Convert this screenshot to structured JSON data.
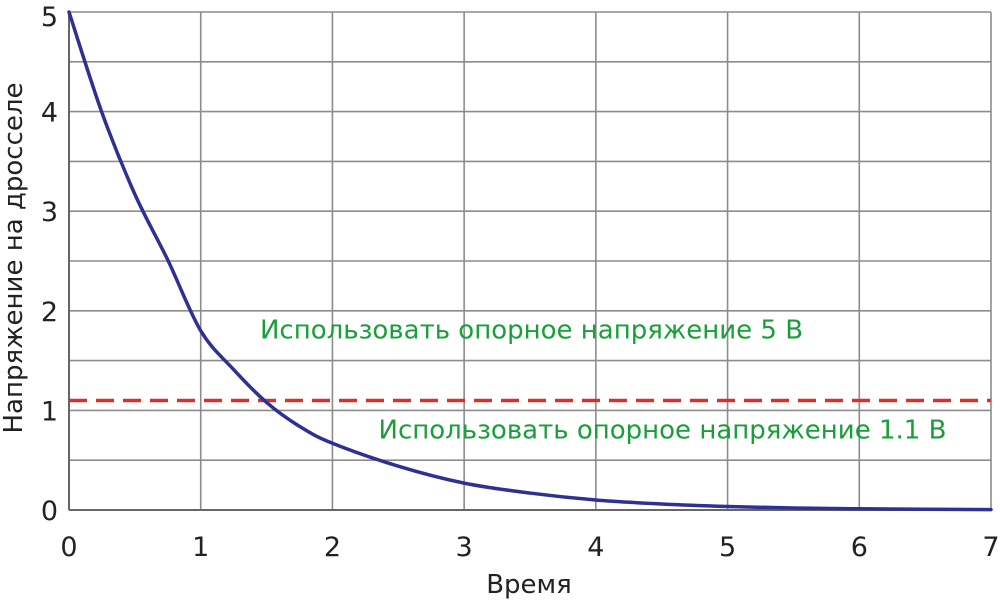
{
  "chart_data": {
    "type": "line",
    "xlabel": "Время",
    "ylabel": "Напряжение на дросселе",
    "xlim": [
      0,
      7
    ],
    "ylim": [
      0,
      5
    ],
    "x_ticks": [
      "0",
      "1",
      "2",
      "3",
      "4",
      "5",
      "6",
      "7"
    ],
    "y_ticks": [
      "0",
      "1",
      "2",
      "3",
      "4",
      "5"
    ],
    "grid": true,
    "series": [
      {
        "color": "#2e3192",
        "x": [
          0,
          0.25,
          0.5,
          0.75,
          1,
          1.25,
          1.5,
          1.75,
          2,
          2.5,
          3,
          3.5,
          4,
          4.5,
          5,
          5.5,
          6,
          6.5,
          7
        ],
        "y": [
          5,
          3.99,
          3.17,
          2.51,
          1.8,
          1.41,
          1.08,
          0.84,
          0.67,
          0.44,
          0.27,
          0.17,
          0.1,
          0.06,
          0.035,
          0.02,
          0.012,
          0.007,
          0.004
        ]
      }
    ],
    "reference_lines": [
      {
        "y": 1.1,
        "color": "#d9302c",
        "style": "dashed"
      }
    ],
    "annotations": [
      {
        "text": "Использовать опорное напряжение 5 В",
        "x": 1.45,
        "y": 1.72,
        "color": "#1a9e3a"
      },
      {
        "text": "Использовать опорное напряжение 1.1 В",
        "x": 2.35,
        "y": 0.72,
        "color": "#1a9e3a"
      }
    ]
  }
}
